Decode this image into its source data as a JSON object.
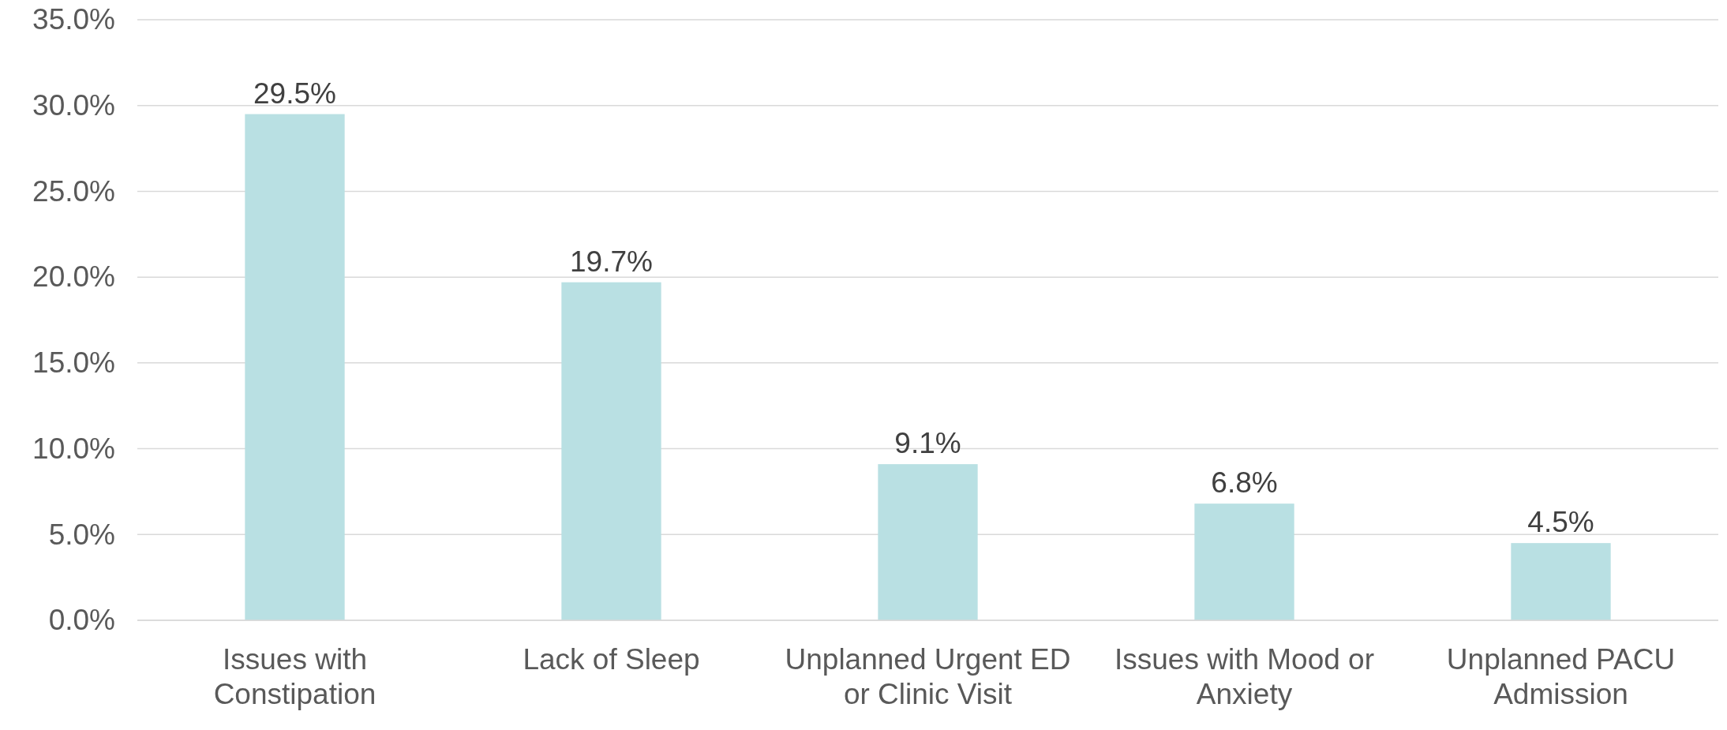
{
  "chart_data": {
    "type": "bar",
    "categories": [
      "Issues with Constipation",
      "Lack of Sleep",
      "Unplanned Urgent ED or Clinic Visit",
      "Issues with Mood or Anxiety",
      "Unplanned PACU Admission"
    ],
    "values": [
      29.5,
      19.7,
      9.1,
      6.8,
      4.5
    ],
    "value_labels": [
      "29.5%",
      "19.7%",
      "9.1%",
      "6.8%",
      "4.5%"
    ],
    "color": "#b9e0e3",
    "ylim": [
      0,
      35
    ],
    "yticks": [
      {
        "value": 0,
        "label": "0.0%"
      },
      {
        "value": 5,
        "label": "5.0%"
      },
      {
        "value": 10,
        "label": "10.0%"
      },
      {
        "value": 15,
        "label": "15.0%"
      },
      {
        "value": 20,
        "label": "20.0%"
      },
      {
        "value": 25,
        "label": "25.0%"
      },
      {
        "value": 30,
        "label": "30.0%"
      },
      {
        "value": 35,
        "label": "35.0%"
      }
    ],
    "grid": "y"
  }
}
